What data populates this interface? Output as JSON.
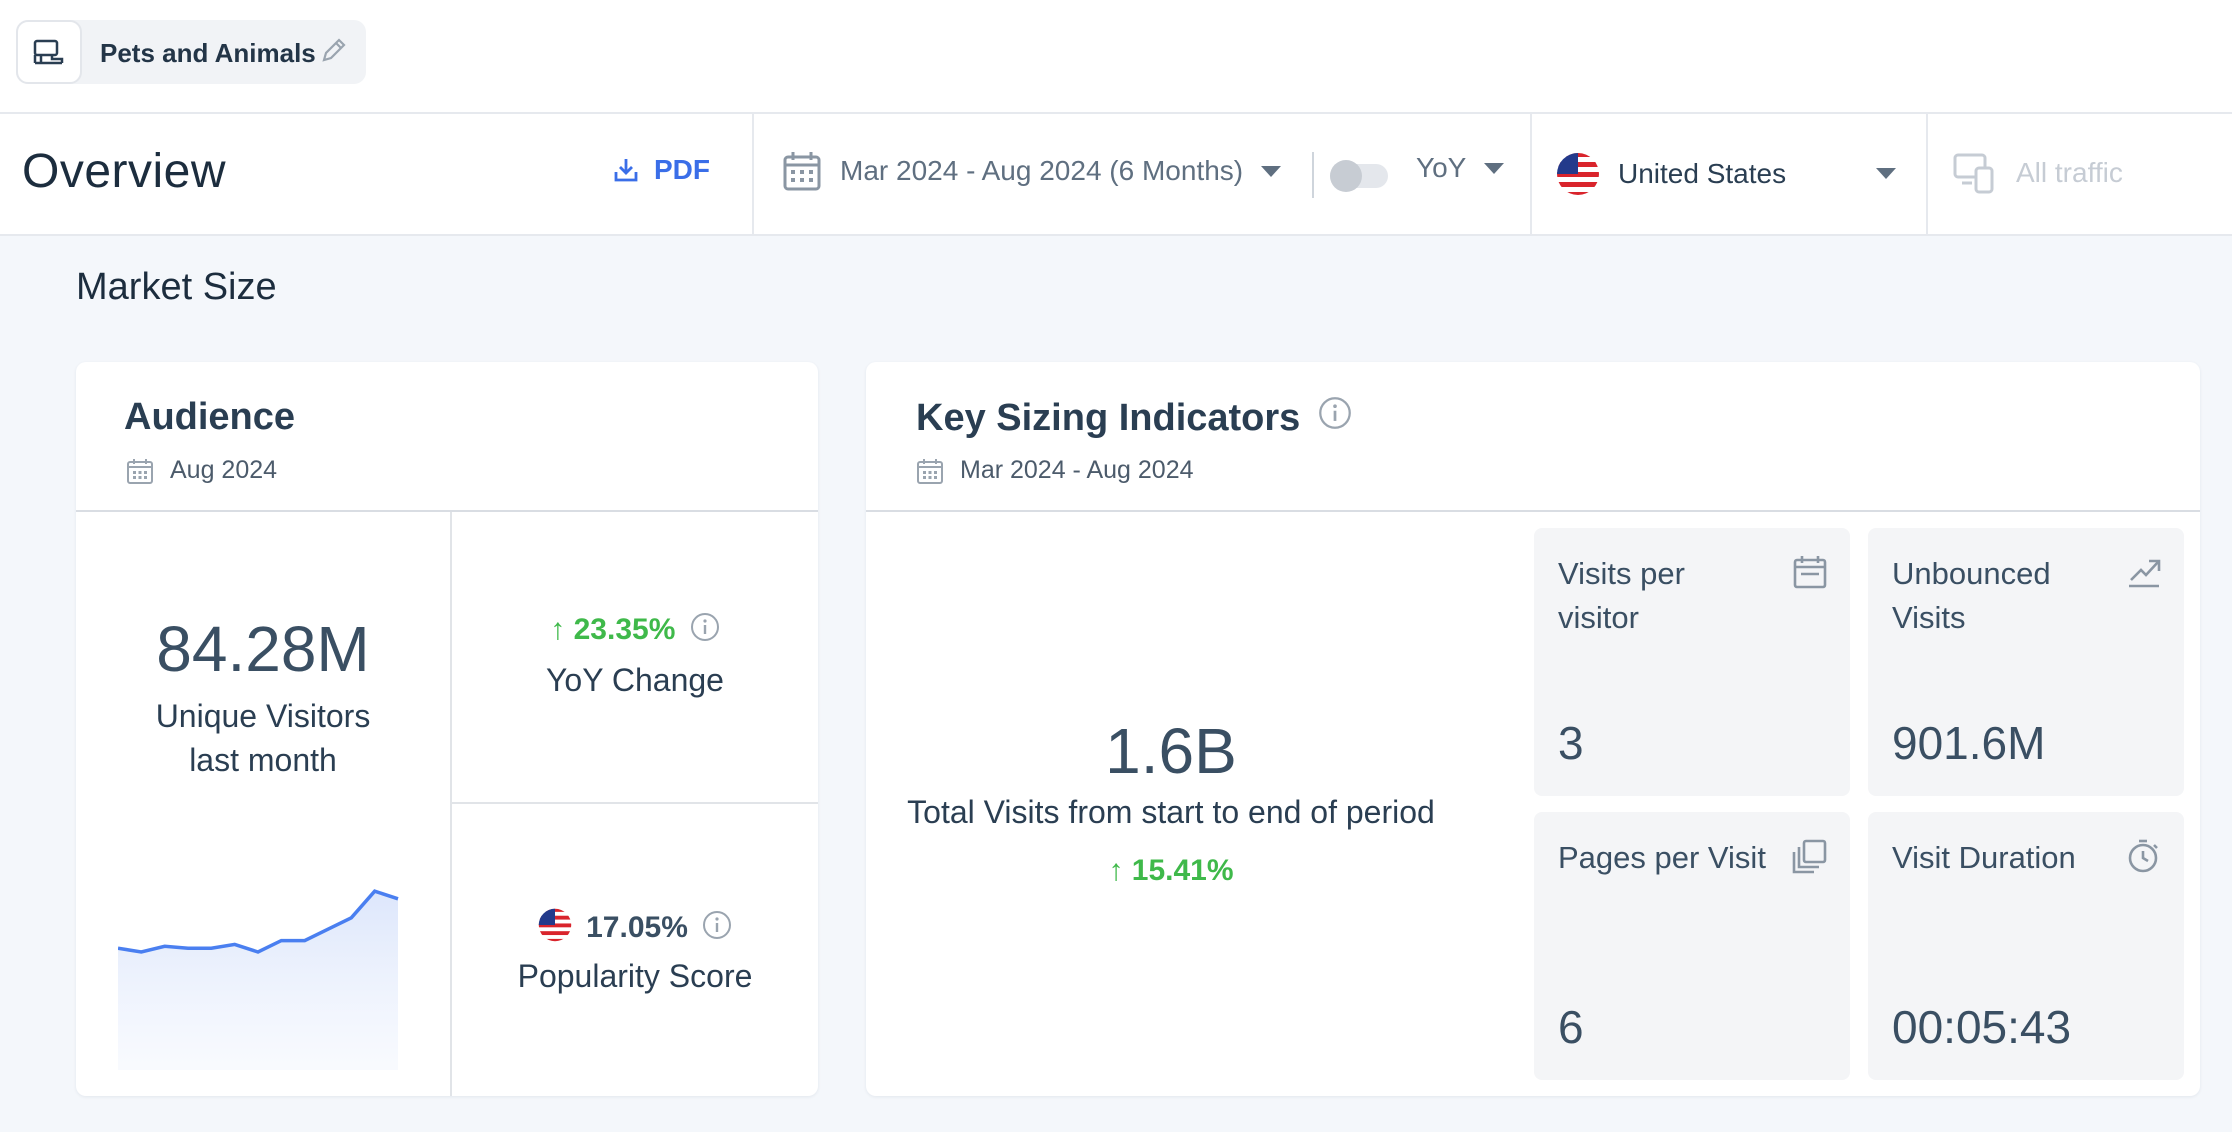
{
  "category": {
    "label": "Pets and Animals"
  },
  "header": {
    "title": "Overview",
    "pdf_label": "PDF",
    "date_range": "Mar 2024 - Aug 2024 (6 Months)",
    "comparison": "YoY",
    "country": "United States",
    "traffic": "All traffic"
  },
  "section": {
    "title": "Market Size"
  },
  "audience": {
    "title": "Audience",
    "date": "Aug 2024",
    "unique_visitors": "84.28M",
    "unique_visitors_label_1": "Unique Visitors",
    "unique_visitors_label_2": "last month",
    "yoy_change": "23.35%",
    "yoy_label": "YoY Change",
    "popularity": "17.05%",
    "popularity_label": "Popularity Score",
    "sparkline": [
      0.62,
      0.6,
      0.63,
      0.62,
      0.62,
      0.64,
      0.6,
      0.66,
      0.66,
      0.72,
      0.78,
      0.92,
      0.88
    ]
  },
  "ksi": {
    "title": "Key Sizing Indicators",
    "date": "Mar 2024 - Aug 2024",
    "total_visits": "1.6B",
    "total_visits_label": "Total Visits from start to end of period",
    "total_visits_change": "15.41%",
    "tiles": [
      {
        "label_1": "Visits per",
        "label_2": "visitor",
        "value": "3"
      },
      {
        "label_1": "Unbounced",
        "label_2": "Visits",
        "value": "901.6M"
      },
      {
        "label_1": "Pages per Visit",
        "label_2": "",
        "value": "6"
      },
      {
        "label_1": "Visit Duration",
        "label_2": "",
        "value": "00:05:43"
      }
    ]
  },
  "colors": {
    "accent": "#3a6ee8",
    "positive": "#3fb94a",
    "sparkline": "#4a7ff0"
  }
}
